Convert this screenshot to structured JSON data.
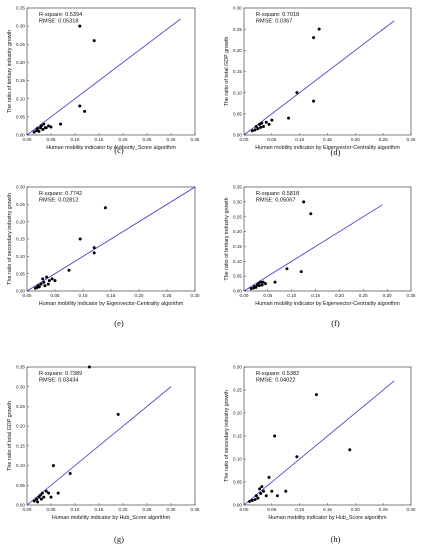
{
  "chart_data": [
    {
      "type": "scatter",
      "panel_label": "(c)",
      "xlabel": "Human mobility indicator by Authority_Score algorithm",
      "ylabel": "The ratio of tertiary industry growth",
      "xlim": [
        0,
        0.35
      ],
      "ylim": [
        0,
        0.35
      ],
      "xticks": [
        "0.00",
        "0.05",
        "0.10",
        "0.15",
        "0.20",
        "0.25",
        "0.30",
        "0.35"
      ],
      "yticks": [
        "0.00",
        "0.05",
        "0.10",
        "0.15",
        "0.20",
        "0.25",
        "0.30",
        "0.35"
      ],
      "tick_values": [
        0,
        0.05,
        0.1,
        0.15,
        0.2,
        0.25,
        0.3,
        0.35
      ],
      "stats": [
        "R-square: 0.5394",
        "RMSE: 0.05318"
      ],
      "fit_line": [
        [
          0,
          0
        ],
        [
          0.32,
          0.32
        ]
      ],
      "points": [
        [
          0.015,
          0.008
        ],
        [
          0.02,
          0.012
        ],
        [
          0.022,
          0.018
        ],
        [
          0.025,
          0.01
        ],
        [
          0.028,
          0.02
        ],
        [
          0.03,
          0.025
        ],
        [
          0.033,
          0.015
        ],
        [
          0.035,
          0.03
        ],
        [
          0.038,
          0.02
        ],
        [
          0.04,
          0.02
        ],
        [
          0.045,
          0.025
        ],
        [
          0.05,
          0.022
        ],
        [
          0.07,
          0.03
        ],
        [
          0.11,
          0.08
        ],
        [
          0.12,
          0.065
        ],
        [
          0.11,
          0.3
        ],
        [
          0.14,
          0.26
        ]
      ]
    },
    {
      "type": "scatter",
      "panel_label": "(d)",
      "xlabel": "Human mobility indicator by Eigenvector-Centrality algorithm",
      "ylabel": "The ratio of total GDP growth",
      "xlim": [
        0,
        0.3
      ],
      "ylim": [
        0,
        0.3
      ],
      "xticks": [
        "0.00",
        "0.05",
        "0.10",
        "0.15",
        "0.20",
        "0.25",
        "0.30"
      ],
      "yticks": [
        "0.00",
        "0.05",
        "0.10",
        "0.15",
        "0.20",
        "0.25",
        "0.30"
      ],
      "tick_values": [
        0,
        0.05,
        0.1,
        0.15,
        0.2,
        0.25,
        0.3
      ],
      "stats": [
        "R-square: 0.7018",
        "RMSE: 0.0367"
      ],
      "fit_line": [
        [
          0,
          0
        ],
        [
          0.27,
          0.27
        ]
      ],
      "points": [
        [
          0.015,
          0.01
        ],
        [
          0.02,
          0.012
        ],
        [
          0.022,
          0.02
        ],
        [
          0.025,
          0.015
        ],
        [
          0.028,
          0.025
        ],
        [
          0.03,
          0.018
        ],
        [
          0.032,
          0.028
        ],
        [
          0.035,
          0.02
        ],
        [
          0.04,
          0.03
        ],
        [
          0.045,
          0.025
        ],
        [
          0.05,
          0.035
        ],
        [
          0.08,
          0.04
        ],
        [
          0.095,
          0.1
        ],
        [
          0.125,
          0.08
        ],
        [
          0.125,
          0.23
        ],
        [
          0.135,
          0.25
        ]
      ]
    },
    {
      "type": "scatter",
      "panel_label": "(e)",
      "xlabel": "Human mobility indicator by Eigenvector-Centrality algorithm",
      "ylabel": "The ratio of secondary industry growth",
      "xlim": [
        0,
        0.3
      ],
      "ylim": [
        0,
        0.3
      ],
      "xticks": [
        "0.00",
        "0.05",
        "0.10",
        "0.15",
        "0.20",
        "0.25",
        "0.30"
      ],
      "yticks": [
        "0.00",
        "0.05",
        "0.10",
        "0.15",
        "0.20",
        "0.25",
        "0.30"
      ],
      "tick_values": [
        0,
        0.05,
        0.1,
        0.15,
        0.2,
        0.25,
        0.3
      ],
      "stats": [
        "R-square: 0.7742",
        "RMSE: 0.02812"
      ],
      "fit_line": [
        [
          0,
          0
        ],
        [
          0.3,
          0.3
        ]
      ],
      "points": [
        [
          0.015,
          0.008
        ],
        [
          0.018,
          0.01
        ],
        [
          0.02,
          0.015
        ],
        [
          0.022,
          0.012
        ],
        [
          0.025,
          0.02
        ],
        [
          0.028,
          0.035
        ],
        [
          0.03,
          0.025
        ],
        [
          0.032,
          0.015
        ],
        [
          0.035,
          0.04
        ],
        [
          0.038,
          0.02
        ],
        [
          0.04,
          0.03
        ],
        [
          0.045,
          0.035
        ],
        [
          0.05,
          0.03
        ],
        [
          0.075,
          0.06
        ],
        [
          0.095,
          0.15
        ],
        [
          0.12,
          0.11
        ],
        [
          0.12,
          0.125
        ],
        [
          0.14,
          0.24
        ]
      ]
    },
    {
      "type": "scatter",
      "panel_label": "(f)",
      "xlabel": "Human mobility indicator by Eigenvector-Centrality algorithm",
      "ylabel": "The ratio of tertiary industry growth",
      "xlim": [
        0,
        0.35
      ],
      "ylim": [
        0,
        0.35
      ],
      "xticks": [
        "0.00",
        "0.05",
        "0.10",
        "0.15",
        "0.20",
        "0.25",
        "0.30",
        "0.35"
      ],
      "yticks": [
        "0.00",
        "0.05",
        "0.10",
        "0.15",
        "0.20",
        "0.25",
        "0.30",
        "0.35"
      ],
      "tick_values": [
        0,
        0.05,
        0.1,
        0.15,
        0.2,
        0.25,
        0.3,
        0.35
      ],
      "stats": [
        "R-square: 0.5818",
        "RMSE: 0.05067"
      ],
      "fit_line": [
        [
          0,
          0
        ],
        [
          0.29,
          0.29
        ]
      ],
      "points": [
        [
          0.015,
          0.008
        ],
        [
          0.02,
          0.01
        ],
        [
          0.022,
          0.015
        ],
        [
          0.025,
          0.012
        ],
        [
          0.028,
          0.02
        ],
        [
          0.03,
          0.025
        ],
        [
          0.032,
          0.018
        ],
        [
          0.035,
          0.03
        ],
        [
          0.038,
          0.02
        ],
        [
          0.04,
          0.03
        ],
        [
          0.045,
          0.025
        ],
        [
          0.065,
          0.03
        ],
        [
          0.09,
          0.075
        ],
        [
          0.12,
          0.065
        ],
        [
          0.125,
          0.3
        ],
        [
          0.14,
          0.26
        ]
      ]
    },
    {
      "type": "scatter",
      "panel_label": "(g)",
      "xlabel": "Human mobility indicator by Hub_Score algorithm",
      "ylabel": "The ratio of total GDP growth",
      "xlim": [
        0,
        0.35
      ],
      "ylim": [
        0,
        0.35
      ],
      "xticks": [
        "0.00",
        "0.05",
        "0.10",
        "0.15",
        "0.20",
        "0.25",
        "0.30",
        "0.35"
      ],
      "yticks": [
        "0.00",
        "0.05",
        "0.10",
        "0.15",
        "0.20",
        "0.25",
        "0.30",
        "0.35"
      ],
      "tick_values": [
        0,
        0.05,
        0.1,
        0.15,
        0.2,
        0.25,
        0.3,
        0.35
      ],
      "stats": [
        "R-square: 0.7389",
        "RMSE: 0.03434"
      ],
      "fit_line": [
        [
          0,
          0
        ],
        [
          0.3,
          0.3
        ]
      ],
      "points": [
        [
          0.015,
          0.01
        ],
        [
          0.02,
          0.015
        ],
        [
          0.022,
          0.008
        ],
        [
          0.025,
          0.02
        ],
        [
          0.028,
          0.025
        ],
        [
          0.03,
          0.015
        ],
        [
          0.032,
          0.03
        ],
        [
          0.035,
          0.02
        ],
        [
          0.04,
          0.035
        ],
        [
          0.045,
          0.03
        ],
        [
          0.05,
          0.02
        ],
        [
          0.055,
          0.1
        ],
        [
          0.065,
          0.03
        ],
        [
          0.09,
          0.08
        ],
        [
          0.13,
          0.35
        ],
        [
          0.19,
          0.23
        ]
      ]
    },
    {
      "type": "scatter",
      "panel_label": "(h)",
      "xlabel": "Human mobility indicator by Hub_Score algorithm",
      "ylabel": "The ratio of secondary industry growth",
      "xlim": [
        0,
        0.3
      ],
      "ylim": [
        0,
        0.3
      ],
      "xticks": [
        "0.00",
        "0.05",
        "0.10",
        "0.15",
        "0.20",
        "0.25",
        "0.30"
      ],
      "yticks": [
        "0.00",
        "0.05",
        "0.10",
        "0.15",
        "0.20",
        "0.25",
        "0.30"
      ],
      "tick_values": [
        0,
        0.05,
        0.1,
        0.15,
        0.2,
        0.25,
        0.3
      ],
      "stats": [
        "R-square: 0.5382",
        "RMSE: 0.04022"
      ],
      "fit_line": [
        [
          0,
          0
        ],
        [
          0.27,
          0.27
        ]
      ],
      "points": [
        [
          0.01,
          0.008
        ],
        [
          0.015,
          0.01
        ],
        [
          0.02,
          0.012
        ],
        [
          0.022,
          0.02
        ],
        [
          0.025,
          0.015
        ],
        [
          0.028,
          0.035
        ],
        [
          0.03,
          0.025
        ],
        [
          0.032,
          0.04
        ],
        [
          0.035,
          0.03
        ],
        [
          0.04,
          0.02
        ],
        [
          0.045,
          0.06
        ],
        [
          0.05,
          0.03
        ],
        [
          0.055,
          0.15
        ],
        [
          0.06,
          0.02
        ],
        [
          0.075,
          0.03
        ],
        [
          0.095,
          0.105
        ],
        [
          0.13,
          0.24
        ],
        [
          0.19,
          0.12
        ]
      ]
    }
  ],
  "colors": {
    "fit_line": "#3333cc",
    "points": "#000000",
    "axes": "#444444"
  }
}
